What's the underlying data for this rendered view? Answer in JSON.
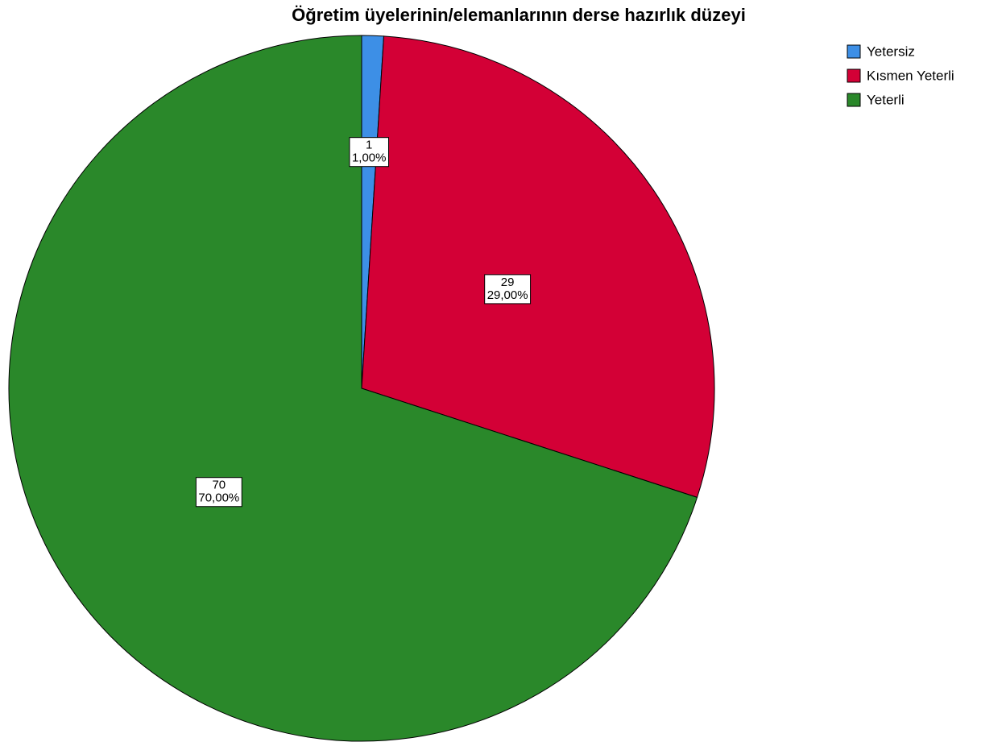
{
  "chart_data": {
    "type": "pie",
    "title": "Öğretim üyelerinin/elemanlarının derse hazırlık düzeyi",
    "categories": [
      "Yetersiz",
      "Kısmen Yeterli",
      "Yeterli"
    ],
    "series": [
      {
        "values": [
          1,
          29,
          70
        ],
        "value_labels": [
          "1,00%",
          "29,00%",
          "70,00%"
        ],
        "colors": [
          "#3d8fe6",
          "#d30036",
          "#2a882a"
        ]
      }
    ],
    "legend": "top-right"
  }
}
